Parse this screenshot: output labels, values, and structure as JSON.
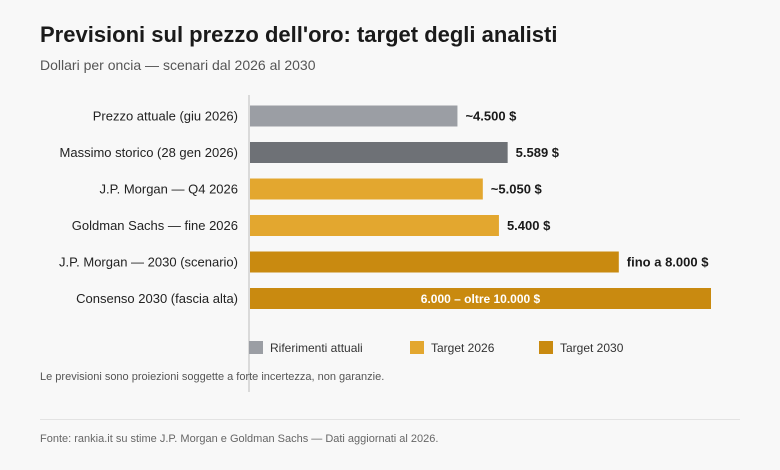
{
  "header": {
    "title": "Previsioni sul prezzo dell'oro: target degli analisti",
    "subtitle": "Dollari per oncia — scenari dal 2026 al 2030"
  },
  "footer": {
    "note": "Le previsioni sono proiezioni soggette a forte incertezza, non garanzie.",
    "source": "Fonte: rankia.it su stime J.P. Morgan e Goldman Sachs — Dati aggiornati al 2026."
  },
  "colors": {
    "riferimenti": "#9b9ea4",
    "riferimenti_dark": "#6e7176",
    "target_2026": "#e3a72f",
    "target_2030": "#c98a10"
  },
  "chart_data": {
    "type": "bar",
    "orientation": "horizontal",
    "xlim": [
      0,
      10000
    ],
    "grid": false,
    "legend_position": "bottom",
    "categories": [
      "Prezzo attuale (giu 2026)",
      "Massimo storico (28 gen 2026)",
      "J.P. Morgan — Q4 2026",
      "Goldman Sachs — fine 2026",
      "J.P. Morgan — 2030 (scenario)",
      "Consenso 2030 (fascia alta)"
    ],
    "values": [
      4500,
      5589,
      5050,
      5400,
      8000,
      10000
    ],
    "groups": [
      "riferimenti",
      "riferimenti",
      "target_2026",
      "target_2026",
      "target_2030",
      "target_2030"
    ],
    "bar_colors": [
      "#9b9ea4",
      "#6e7176",
      "#e3a72f",
      "#e3a72f",
      "#c98a10",
      "#c98a10"
    ],
    "data_labels": [
      "~4.500 $",
      "5.589 $",
      "~5.050 $",
      "5.400 $",
      "fino a 8.000 $",
      "6.000 – oltre 10.000 $"
    ],
    "label_inside": [
      false,
      false,
      false,
      false,
      false,
      true
    ],
    "legend": [
      {
        "label": "Riferimenti attuali",
        "color": "#9b9ea4"
      },
      {
        "label": "Target 2026",
        "color": "#e3a72f"
      },
      {
        "label": "Target 2030",
        "color": "#c98a10"
      }
    ]
  }
}
